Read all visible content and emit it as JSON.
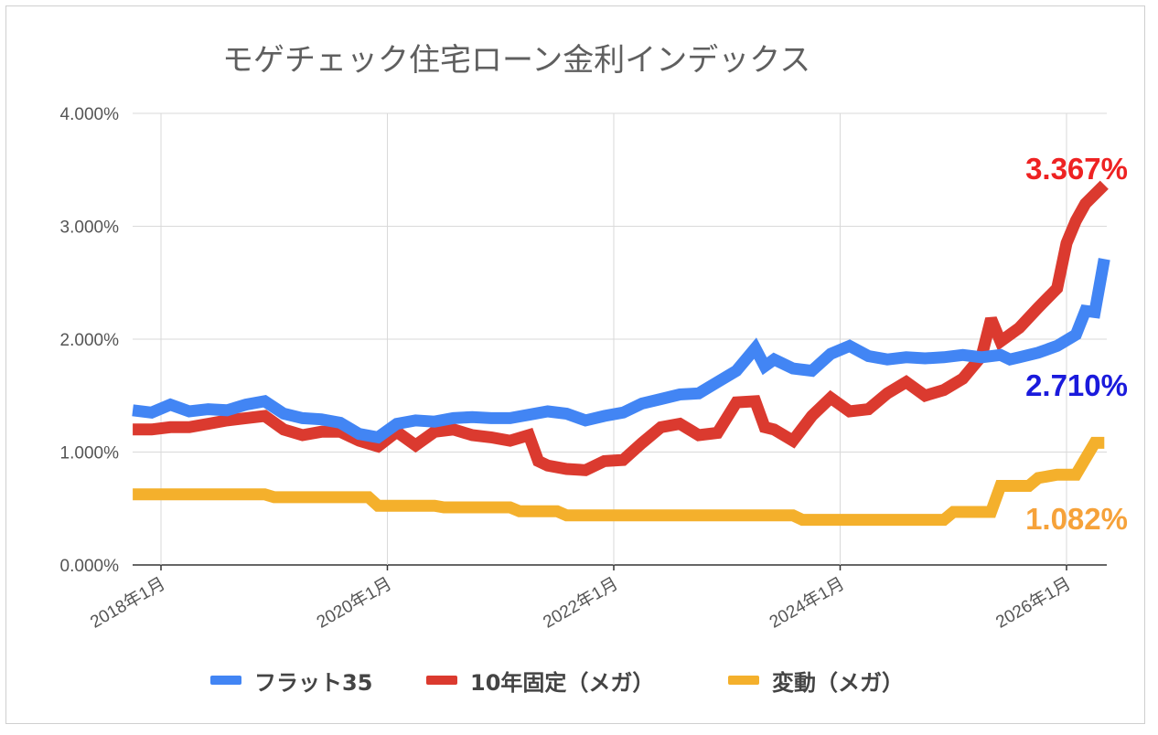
{
  "chart_data": {
    "type": "line",
    "title": "モゲチェック住宅ローン金利インデックス",
    "ylim": [
      0,
      4
    ],
    "yticks": [
      "0.000%",
      "1.000%",
      "2.000%",
      "3.000%",
      "4.000%"
    ],
    "xticks": [
      "2018年1月",
      "2020年1月",
      "2022年1月",
      "2024年1月",
      "2026年1月"
    ],
    "grid": true,
    "legend_position": "bottom",
    "series": [
      {
        "name": "フラット35",
        "color": "#4285f4",
        "end_label": "2.710%",
        "end_label_color": "#1a1adc",
        "points": [
          [
            "2017-10",
            1.37
          ],
          [
            "2017-12",
            1.35
          ],
          [
            "2018-02",
            1.42
          ],
          [
            "2018-04",
            1.36
          ],
          [
            "2018-06",
            1.38
          ],
          [
            "2018-08",
            1.37
          ],
          [
            "2018-10",
            1.42
          ],
          [
            "2018-12",
            1.45
          ],
          [
            "2019-02",
            1.34
          ],
          [
            "2019-04",
            1.3
          ],
          [
            "2019-06",
            1.29
          ],
          [
            "2019-08",
            1.26
          ],
          [
            "2019-10",
            1.16
          ],
          [
            "2019-12",
            1.13
          ],
          [
            "2020-02",
            1.25
          ],
          [
            "2020-04",
            1.28
          ],
          [
            "2020-06",
            1.27
          ],
          [
            "2020-08",
            1.3
          ],
          [
            "2020-10",
            1.31
          ],
          [
            "2020-12",
            1.3
          ],
          [
            "2021-02",
            1.3
          ],
          [
            "2021-04",
            1.33
          ],
          [
            "2021-06",
            1.36
          ],
          [
            "2021-08",
            1.34
          ],
          [
            "2021-10",
            1.28
          ],
          [
            "2021-12",
            1.32
          ],
          [
            "2022-02",
            1.35
          ],
          [
            "2022-04",
            1.43
          ],
          [
            "2022-06",
            1.47
          ],
          [
            "2022-08",
            1.51
          ],
          [
            "2022-10",
            1.52
          ],
          [
            "2022-12",
            1.62
          ],
          [
            "2023-02",
            1.72
          ],
          [
            "2023-04",
            1.92
          ],
          [
            "2023-05",
            1.76
          ],
          [
            "2023-06",
            1.82
          ],
          [
            "2023-08",
            1.74
          ],
          [
            "2023-10",
            1.72
          ],
          [
            "2023-12",
            1.87
          ],
          [
            "2024-02",
            1.94
          ],
          [
            "2024-04",
            1.85
          ],
          [
            "2024-06",
            1.82
          ],
          [
            "2024-08",
            1.84
          ],
          [
            "2024-10",
            1.83
          ],
          [
            "2024-12",
            1.84
          ],
          [
            "2025-02",
            1.86
          ],
          [
            "2025-04",
            1.84
          ],
          [
            "2025-06",
            1.86
          ],
          [
            "2025-07",
            1.82
          ],
          [
            "2025-08",
            1.84
          ],
          [
            "2025-10",
            1.88
          ],
          [
            "2025-12",
            1.94
          ],
          [
            "2026-02",
            2.04
          ],
          [
            "2026-03",
            2.25
          ],
          [
            "2026-04",
            2.24
          ],
          [
            "2026-05",
            2.71
          ]
        ]
      },
      {
        "name": "10年固定（メガ）",
        "color": "#db3a2f",
        "end_label": "3.367%",
        "end_label_color": "#ee2222",
        "points": [
          [
            "2017-10",
            1.2
          ],
          [
            "2017-12",
            1.2
          ],
          [
            "2018-02",
            1.22
          ],
          [
            "2018-04",
            1.22
          ],
          [
            "2018-06",
            1.25
          ],
          [
            "2018-08",
            1.28
          ],
          [
            "2018-10",
            1.3
          ],
          [
            "2018-12",
            1.32
          ],
          [
            "2019-02",
            1.2
          ],
          [
            "2019-04",
            1.15
          ],
          [
            "2019-06",
            1.18
          ],
          [
            "2019-08",
            1.18
          ],
          [
            "2019-10",
            1.1
          ],
          [
            "2019-12",
            1.05
          ],
          [
            "2020-02",
            1.18
          ],
          [
            "2020-04",
            1.06
          ],
          [
            "2020-06",
            1.18
          ],
          [
            "2020-08",
            1.2
          ],
          [
            "2020-10",
            1.15
          ],
          [
            "2020-12",
            1.13
          ],
          [
            "2021-02",
            1.1
          ],
          [
            "2021-04",
            1.15
          ],
          [
            "2021-05",
            0.92
          ],
          [
            "2021-06",
            0.88
          ],
          [
            "2021-08",
            0.85
          ],
          [
            "2021-10",
            0.84
          ],
          [
            "2021-12",
            0.92
          ],
          [
            "2022-02",
            0.93
          ],
          [
            "2022-04",
            1.08
          ],
          [
            "2022-06",
            1.22
          ],
          [
            "2022-08",
            1.25
          ],
          [
            "2022-10",
            1.15
          ],
          [
            "2022-12",
            1.17
          ],
          [
            "2023-02",
            1.44
          ],
          [
            "2023-04",
            1.45
          ],
          [
            "2023-05",
            1.22
          ],
          [
            "2023-06",
            1.2
          ],
          [
            "2023-08",
            1.1
          ],
          [
            "2023-10",
            1.32
          ],
          [
            "2023-12",
            1.48
          ],
          [
            "2024-02",
            1.36
          ],
          [
            "2024-04",
            1.38
          ],
          [
            "2024-06",
            1.52
          ],
          [
            "2024-08",
            1.62
          ],
          [
            "2024-10",
            1.5
          ],
          [
            "2024-12",
            1.55
          ],
          [
            "2025-02",
            1.65
          ],
          [
            "2025-04",
            1.85
          ],
          [
            "2025-05",
            2.18
          ],
          [
            "2025-06",
            1.98
          ],
          [
            "2025-08",
            2.1
          ],
          [
            "2025-10",
            2.28
          ],
          [
            "2025-12",
            2.45
          ],
          [
            "2026-01",
            2.85
          ],
          [
            "2026-02",
            3.05
          ],
          [
            "2026-03",
            3.2
          ],
          [
            "2026-05",
            3.367
          ]
        ]
      },
      {
        "name": "変動（メガ）",
        "color": "#f4b02c",
        "end_label": "1.082%",
        "end_label_color": "#f6a23a",
        "points": [
          [
            "2017-10",
            0.625
          ],
          [
            "2018-12",
            0.625
          ],
          [
            "2019-01",
            0.6
          ],
          [
            "2019-11",
            0.6
          ],
          [
            "2019-12",
            0.525
          ],
          [
            "2020-06",
            0.525
          ],
          [
            "2020-07",
            0.51
          ],
          [
            "2021-02",
            0.51
          ],
          [
            "2021-03",
            0.475
          ],
          [
            "2021-07",
            0.475
          ],
          [
            "2021-08",
            0.44
          ],
          [
            "2023-08",
            0.44
          ],
          [
            "2023-09",
            0.4
          ],
          [
            "2024-12",
            0.4
          ],
          [
            "2025-01",
            0.47
          ],
          [
            "2025-05",
            0.47
          ],
          [
            "2025-06",
            0.7
          ],
          [
            "2025-09",
            0.7
          ],
          [
            "2025-10",
            0.77
          ],
          [
            "2025-12",
            0.8
          ],
          [
            "2026-02",
            0.8
          ],
          [
            "2026-04",
            1.082
          ],
          [
            "2026-05",
            1.082
          ]
        ]
      }
    ]
  }
}
